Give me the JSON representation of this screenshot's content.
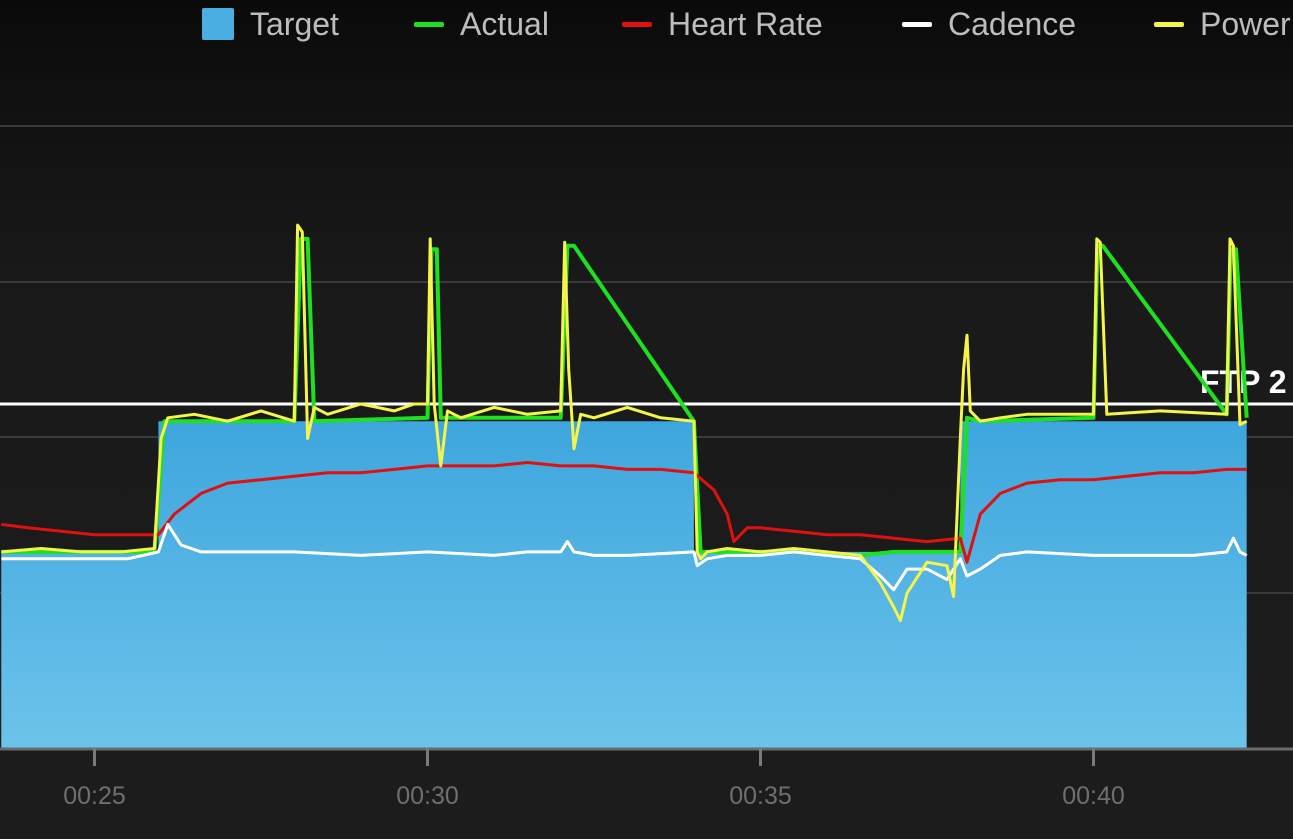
{
  "legend": {
    "items": [
      {
        "label": "Target",
        "color": "#4aaee0",
        "kind": "square"
      },
      {
        "label": "Actual",
        "color": "#1fe01f",
        "kind": "line"
      },
      {
        "label": "Heart Rate",
        "color": "#e01010",
        "kind": "line"
      },
      {
        "label": "Cadence",
        "color": "#ffffff",
        "kind": "line"
      },
      {
        "label": "Power",
        "color": "#f4f44a",
        "kind": "line"
      }
    ]
  },
  "chart_data": {
    "type": "area",
    "x_unit": "minutes",
    "xlim": [
      23.6,
      42.3
    ],
    "x_ticks": [
      25,
      30,
      35,
      40
    ],
    "x_tick_labels": [
      "00:25",
      "00:30",
      "00:35",
      "00:40"
    ],
    "ftp_label": "FTP 2",
    "series": [
      {
        "name": "Target",
        "color": "#4aaee0",
        "x": [
          23.6,
          25.96,
          25.96,
          34.0,
          34.0,
          38.0,
          38.0,
          42.3
        ],
        "values": [
          0.57,
          0.57,
          0.95,
          0.95,
          0.57,
          0.57,
          0.95,
          0.95
        ]
      },
      {
        "name": "Actual",
        "color": "#1fe01f",
        "x": [
          23.6,
          25.9,
          26.05,
          28.0,
          28.1,
          28.2,
          28.3,
          30.0,
          30.06,
          30.14,
          30.2,
          32.0,
          32.1,
          32.2,
          34.0,
          34.1,
          34.5,
          35.5,
          36.5,
          37.0,
          37.5,
          38.0,
          38.1,
          38.3,
          40.0,
          40.06,
          40.14,
          42.0,
          42.06,
          42.14,
          42.3
        ],
        "values": [
          0.57,
          0.57,
          0.95,
          0.95,
          1.48,
          1.48,
          0.95,
          0.96,
          1.45,
          1.45,
          0.96,
          0.96,
          1.46,
          1.46,
          0.95,
          0.57,
          0.57,
          0.57,
          0.56,
          0.57,
          0.57,
          0.57,
          0.96,
          0.95,
          0.96,
          1.46,
          1.46,
          0.97,
          1.45,
          1.45,
          0.96
        ]
      },
      {
        "name": "Heart Rate",
        "color": "#e01010",
        "x": [
          23.6,
          24.0,
          24.5,
          25.0,
          25.5,
          25.96,
          26.2,
          26.6,
          27.0,
          27.5,
          28.0,
          28.5,
          29.0,
          29.5,
          30.0,
          30.5,
          31.0,
          31.5,
          32.0,
          32.5,
          33.0,
          33.5,
          34.0,
          34.3,
          34.5,
          34.6,
          34.7,
          34.8,
          35.0,
          35.5,
          36.0,
          36.5,
          37.0,
          37.5,
          38.0,
          38.1,
          38.3,
          38.6,
          39.0,
          39.5,
          40.0,
          40.5,
          41.0,
          41.5,
          42.0,
          42.3
        ],
        "values": [
          0.65,
          0.64,
          0.63,
          0.62,
          0.62,
          0.62,
          0.68,
          0.74,
          0.77,
          0.78,
          0.79,
          0.8,
          0.8,
          0.81,
          0.82,
          0.82,
          0.82,
          0.83,
          0.82,
          0.82,
          0.81,
          0.81,
          0.8,
          0.75,
          0.68,
          0.6,
          0.62,
          0.64,
          0.64,
          0.63,
          0.62,
          0.62,
          0.61,
          0.6,
          0.61,
          0.54,
          0.68,
          0.74,
          0.77,
          0.78,
          0.78,
          0.79,
          0.8,
          0.8,
          0.81,
          0.81
        ]
      },
      {
        "name": "Cadence",
        "color": "#ffffff",
        "x": [
          23.6,
          25.5,
          25.96,
          26.1,
          26.3,
          26.6,
          27.0,
          28.0,
          29.0,
          30.0,
          31.0,
          31.5,
          32.0,
          32.1,
          32.2,
          32.5,
          33.0,
          34.0,
          34.05,
          34.2,
          34.5,
          35.0,
          35.5,
          36.0,
          36.5,
          36.8,
          37.0,
          37.2,
          37.5,
          37.8,
          38.0,
          38.1,
          38.3,
          38.6,
          39.0,
          40.0,
          41.0,
          41.5,
          42.0,
          42.1,
          42.2,
          42.3
        ],
        "values": [
          0.55,
          0.55,
          0.57,
          0.65,
          0.59,
          0.57,
          0.57,
          0.57,
          0.56,
          0.57,
          0.56,
          0.57,
          0.57,
          0.6,
          0.57,
          0.56,
          0.56,
          0.57,
          0.53,
          0.55,
          0.56,
          0.56,
          0.57,
          0.56,
          0.55,
          0.5,
          0.46,
          0.52,
          0.52,
          0.49,
          0.55,
          0.5,
          0.52,
          0.56,
          0.57,
          0.56,
          0.56,
          0.56,
          0.57,
          0.61,
          0.57,
          0.56
        ]
      },
      {
        "name": "Power",
        "color": "#f4f44a",
        "x": [
          23.6,
          24.2,
          24.8,
          25.4,
          25.9,
          26.0,
          26.1,
          26.5,
          27.0,
          27.5,
          28.0,
          28.05,
          28.12,
          28.2,
          28.3,
          28.5,
          29.0,
          29.5,
          29.8,
          30.0,
          30.04,
          30.1,
          30.2,
          30.3,
          30.5,
          31.0,
          31.5,
          32.0,
          32.06,
          32.12,
          32.2,
          32.3,
          32.5,
          33.0,
          33.5,
          34.0,
          34.05,
          34.1,
          34.2,
          34.5,
          35.0,
          35.5,
          36.0,
          36.5,
          36.8,
          37.0,
          37.1,
          37.2,
          37.5,
          37.8,
          37.9,
          38.0,
          38.05,
          38.1,
          38.15,
          38.3,
          38.6,
          39.0,
          40.0,
          40.05,
          40.1,
          40.2,
          41.0,
          42.0,
          42.05,
          42.1,
          42.2,
          42.3
        ],
        "values": [
          0.57,
          0.58,
          0.57,
          0.57,
          0.58,
          0.9,
          0.96,
          0.97,
          0.95,
          0.98,
          0.95,
          1.52,
          1.5,
          0.9,
          0.99,
          0.97,
          1.0,
          0.98,
          1.0,
          1.0,
          1.48,
          1.0,
          0.82,
          0.98,
          0.96,
          0.99,
          0.97,
          0.98,
          1.47,
          1.1,
          0.87,
          0.97,
          0.96,
          0.99,
          0.96,
          0.95,
          0.57,
          0.55,
          0.57,
          0.58,
          0.57,
          0.58,
          0.57,
          0.56,
          0.48,
          0.41,
          0.37,
          0.45,
          0.54,
          0.53,
          0.44,
          0.9,
          1.1,
          1.2,
          0.98,
          0.95,
          0.96,
          0.97,
          0.97,
          1.48,
          1.47,
          0.97,
          0.98,
          0.97,
          1.48,
          1.46,
          0.94,
          0.95
        ]
      }
    ]
  }
}
